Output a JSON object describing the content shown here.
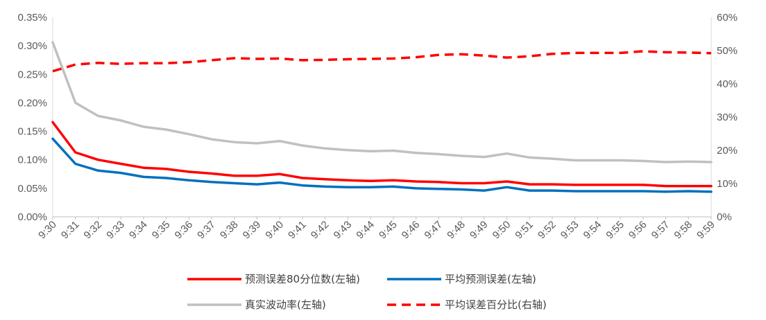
{
  "chart_data": {
    "type": "line",
    "title": "",
    "x": [
      "9:30",
      "9:31",
      "9:32",
      "9:33",
      "9:34",
      "9:35",
      "9:36",
      "9:37",
      "9:38",
      "9:39",
      "9:40",
      "9:41",
      "9:42",
      "9:43",
      "9:44",
      "9:45",
      "9:46",
      "9:47",
      "9:48",
      "9:49",
      "9:50",
      "9:51",
      "9:52",
      "9:53",
      "9:54",
      "9:55",
      "9:56",
      "9:57",
      "9:58",
      "9:59"
    ],
    "y_left": {
      "ticks": [
        "0.00%",
        "0.05%",
        "0.10%",
        "0.15%",
        "0.20%",
        "0.25%",
        "0.30%",
        "0.35%"
      ],
      "range": [
        0,
        0.35
      ],
      "unit": "%"
    },
    "y_right": {
      "ticks": [
        "0%",
        "10%",
        "20%",
        "30%",
        "40%",
        "50%",
        "60%"
      ],
      "range": [
        0,
        60
      ],
      "unit": "%"
    },
    "grid": false,
    "legend_position": "bottom",
    "series": [
      {
        "name": "预测误差80分位数(左轴)",
        "axis": "left",
        "color": "#ff0000",
        "dash": false,
        "values": [
          0.166,
          0.113,
          0.1,
          0.093,
          0.086,
          0.084,
          0.079,
          0.076,
          0.072,
          0.072,
          0.075,
          0.068,
          0.066,
          0.064,
          0.063,
          0.064,
          0.062,
          0.061,
          0.059,
          0.059,
          0.062,
          0.057,
          0.057,
          0.056,
          0.056,
          0.056,
          0.056,
          0.054,
          0.054,
          0.054
        ]
      },
      {
        "name": "平均预测误差(左轴)",
        "axis": "left",
        "color": "#0070c0",
        "dash": false,
        "values": [
          0.137,
          0.093,
          0.081,
          0.077,
          0.07,
          0.068,
          0.064,
          0.061,
          0.059,
          0.057,
          0.06,
          0.055,
          0.053,
          0.052,
          0.052,
          0.053,
          0.05,
          0.049,
          0.048,
          0.046,
          0.052,
          0.046,
          0.046,
          0.045,
          0.045,
          0.045,
          0.045,
          0.044,
          0.045,
          0.044
        ]
      },
      {
        "name": "真实波动率(左轴)",
        "axis": "left",
        "color": "#c0c0c0",
        "dash": false,
        "values": [
          0.306,
          0.2,
          0.177,
          0.169,
          0.158,
          0.153,
          0.145,
          0.136,
          0.131,
          0.129,
          0.133,
          0.125,
          0.12,
          0.117,
          0.115,
          0.116,
          0.112,
          0.11,
          0.107,
          0.105,
          0.111,
          0.104,
          0.102,
          0.099,
          0.099,
          0.099,
          0.098,
          0.096,
          0.097,
          0.096
        ]
      },
      {
        "name": "平均误差百分比(右轴)",
        "axis": "right",
        "color": "#ff0000",
        "dash": true,
        "values": [
          43.8,
          45.8,
          46.3,
          46.0,
          46.2,
          46.2,
          46.5,
          47.1,
          47.7,
          47.5,
          47.6,
          47.1,
          47.2,
          47.4,
          47.5,
          47.6,
          48.0,
          48.7,
          48.9,
          48.5,
          47.9,
          48.3,
          49.0,
          49.3,
          49.3,
          49.3,
          49.8,
          49.5,
          49.4,
          49.2
        ]
      }
    ]
  }
}
